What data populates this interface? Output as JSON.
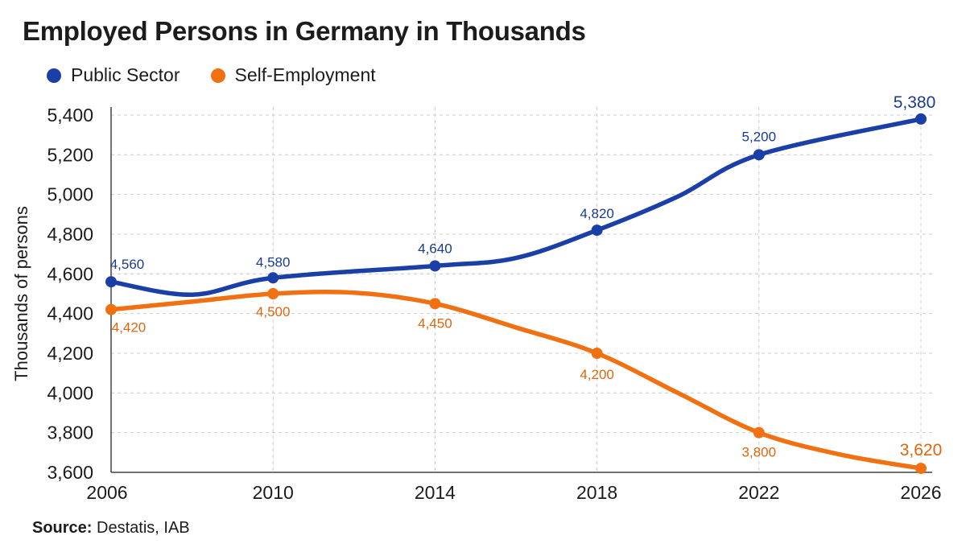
{
  "chart_data": {
    "type": "line",
    "title": "Employed Persons in Germany in Thousands",
    "xlabel": "",
    "ylabel": "Thousands of persons",
    "x": [
      2006,
      2010,
      2014,
      2018,
      2022,
      2026
    ],
    "x_ticks": [
      "2006",
      "2010",
      "2014",
      "2018",
      "2022",
      "2026"
    ],
    "xlim": [
      2006,
      2026
    ],
    "ylim": [
      3600,
      5400
    ],
    "y_ticks": [
      3600,
      3800,
      4000,
      4200,
      4400,
      4600,
      4800,
      5000,
      5200,
      5400
    ],
    "y_tick_labels": [
      "3,600",
      "3,800",
      "4,000",
      "4,200",
      "4,400",
      "4,600",
      "4,800",
      "5,000",
      "5,200",
      "5,400"
    ],
    "grid": "horizontal dashed",
    "legend_position": "top-left",
    "series": [
      {
        "name": "Public Sector",
        "color": "#1a3fa6",
        "values": [
          4560,
          4580,
          4640,
          4820,
          5200,
          5380
        ],
        "labels": [
          "4,560",
          "4,580",
          "4,640",
          "4,820",
          "5,200",
          "5,380"
        ],
        "curve": [
          [
            2006,
            4560
          ],
          [
            2008,
            4495
          ],
          [
            2010,
            4580
          ],
          [
            2014,
            4640
          ],
          [
            2016,
            4680
          ],
          [
            2018,
            4820
          ],
          [
            2020,
            4990
          ],
          [
            2022,
            5200
          ],
          [
            2026,
            5380
          ]
        ]
      },
      {
        "name": "Self-Employment",
        "color": "#f07012",
        "values": [
          4420,
          4500,
          4450,
          4200,
          3800,
          3620
        ],
        "labels": [
          "4,420",
          "4,500",
          "4,450",
          "4,200",
          "3,800",
          "3,620"
        ],
        "curve": [
          [
            2006,
            4420
          ],
          [
            2008,
            4460
          ],
          [
            2010,
            4500
          ],
          [
            2012,
            4505
          ],
          [
            2014,
            4450
          ],
          [
            2016,
            4330
          ],
          [
            2018,
            4200
          ],
          [
            2020,
            4000
          ],
          [
            2022,
            3800
          ],
          [
            2024,
            3690
          ],
          [
            2026,
            3620
          ]
        ]
      }
    ]
  },
  "legend": {
    "public_label": "Public Sector",
    "self_label": "Self-Employment"
  },
  "source": {
    "label": "Source:",
    "text": "Destatis, IAB"
  }
}
